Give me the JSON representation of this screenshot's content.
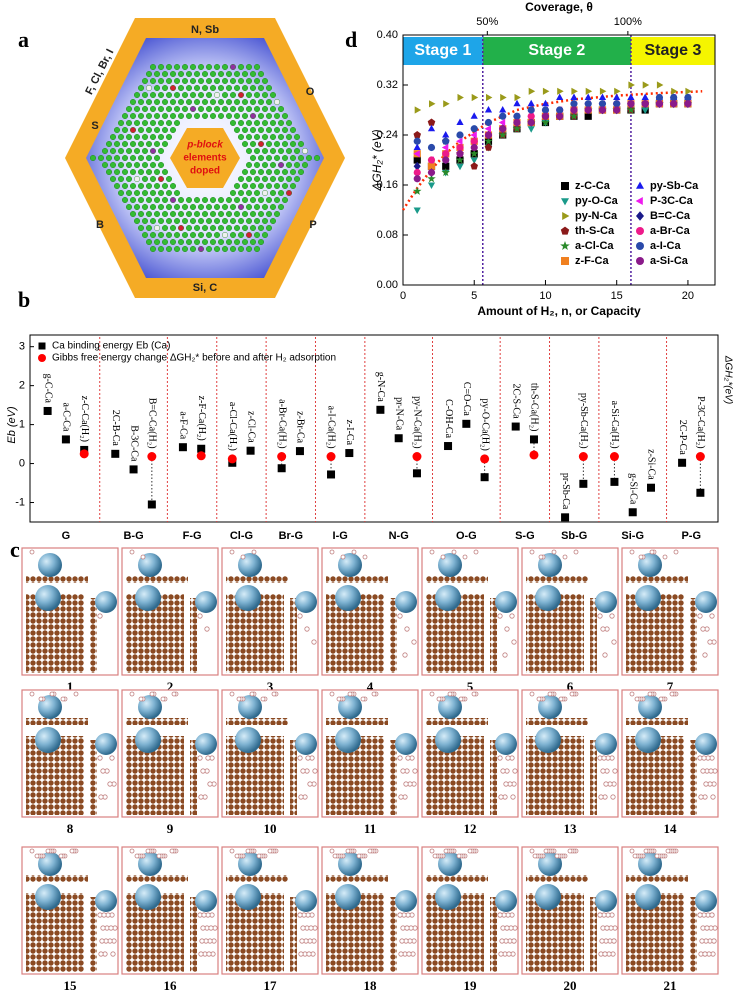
{
  "panel_labels": [
    "a",
    "b",
    "c",
    "d"
  ],
  "diagram": {
    "edge_labels": [
      "N, Sb",
      "O",
      "P",
      "Si, C",
      "B",
      "S",
      "F, Cl, Br, I"
    ],
    "center": [
      "p-block",
      "elements",
      "doped"
    ]
  },
  "snapshots": {
    "labels": [
      1,
      2,
      3,
      4,
      5,
      6,
      7,
      8,
      9,
      10,
      11,
      12,
      13,
      14,
      15,
      16,
      17,
      18,
      19,
      20,
      21
    ]
  },
  "chart_data": [
    {
      "type": "dot",
      "y_label": "Eb (eV)",
      "y2_label": "ΔGH₂*(eV)",
      "ylim": [
        -1.5,
        3.3
      ],
      "yticks": [
        -1,
        0,
        1,
        2,
        3
      ],
      "legend": "top-left",
      "groups": [
        {
          "label": "G",
          "categories": [
            "g-C-Ca",
            "a-C-Ca",
            "z-C-Ca(H₂)"
          ]
        },
        {
          "label": "B-G",
          "categories": [
            "2C-B-Ca",
            "B-3C-Ca",
            "B=C-Ca(H₂)"
          ]
        },
        {
          "label": "F-G",
          "categories": [
            "a-F-Ca",
            "z-F-Ca(H₂)"
          ]
        },
        {
          "label": "Cl-G",
          "categories": [
            "a-Cl-Ca(H₂)",
            "z-Cl-Ca"
          ]
        },
        {
          "label": "Br-G",
          "categories": [
            "a-Br-Ca(H₂)",
            "z-Br-Ca"
          ]
        },
        {
          "label": "I-G",
          "categories": [
            "a-I-Ca(H₂)",
            "z-I-Ca"
          ]
        },
        {
          "label": "N-G",
          "categories": [
            "g-N-Ca",
            "pr-N-Ca",
            "py-N-Ca(H₂)"
          ]
        },
        {
          "label": "O-G",
          "categories": [
            "C-OH-Ca",
            "C=O-Ca",
            "py-O-Ca(H₂)"
          ]
        },
        {
          "label": "S-G",
          "categories": [
            "2C-S-Ca",
            "th-S-Ca(H₂)"
          ]
        },
        {
          "label": "Sb-G",
          "categories": [
            "pr-Sb-Ca",
            "py-Sb-Ca(H₂)"
          ]
        },
        {
          "label": "Si-G",
          "categories": [
            "a-Si-Ca(H₂)",
            "g-Si-Ca",
            "z-Si-Ca"
          ]
        },
        {
          "label": "P-G",
          "categories": [
            "2C-P-Ca",
            "P-3C-Ca(H₂)"
          ]
        }
      ],
      "series": [
        {
          "name": "Ca binding energy Eb (Ca)",
          "color": "#000000",
          "marker": "square",
          "values": [
            1.35,
            0.62,
            0.35,
            0.25,
            -0.15,
            -1.05,
            0.42,
            0.38,
            0.02,
            0.33,
            -0.12,
            0.32,
            -0.28,
            0.27,
            1.38,
            0.65,
            -0.25,
            0.45,
            1.02,
            -0.35,
            0.95,
            0.62,
            -1.38,
            -0.52,
            -0.47,
            -1.25,
            -0.62,
            0.02,
            -0.75
          ]
        },
        {
          "name": "Gibbs free energy change ΔGH₂* before and after H₂ adsorption",
          "color": "#ff0000",
          "marker": "circle",
          "values": [
            null,
            null,
            0.25,
            null,
            null,
            0.18,
            null,
            0.2,
            0.12,
            null,
            0.18,
            null,
            0.18,
            null,
            null,
            null,
            0.18,
            null,
            null,
            0.12,
            null,
            0.22,
            null,
            0.18,
            0.18,
            null,
            null,
            null,
            0.18
          ]
        }
      ]
    },
    {
      "type": "scatter",
      "x_label": "Amount of H₂, n, or Capacity",
      "y_label": "ΔGH₂* (eV)",
      "x2_label": "Coverage, θ",
      "x": [
        1,
        2,
        3,
        4,
        5,
        6,
        7,
        8,
        9,
        10,
        11,
        12,
        13,
        14,
        15,
        16,
        17,
        18,
        19,
        20
      ],
      "xlim": [
        0,
        21.9
      ],
      "xticks": [
        0,
        5,
        10,
        15,
        20
      ],
      "ylim": [
        0,
        0.4
      ],
      "yticks": [
        {
          "value": 0,
          "label": "0.00"
        },
        {
          "value": 0.08,
          "label": "0.08"
        },
        {
          "value": 0.16,
          "label": "0.16"
        },
        {
          "value": 0.24,
          "label": "0.24"
        },
        {
          "value": 0.32,
          "label": "0.32"
        },
        {
          "value": 0.4,
          "label": "0.40"
        }
      ],
      "x2lim": [
        20,
        131
      ],
      "x2ticks": [
        {
          "value": 50,
          "label": "50%"
        },
        {
          "value": 100,
          "label": "100%"
        }
      ],
      "legend": "lower-right",
      "stages": [
        {
          "label": "Stage 1",
          "color": "#1ea5e8",
          "text_color": "#ffffff",
          "range": [
            0,
            5.6
          ]
        },
        {
          "label": "Stage 2",
          "color": "#22b04a",
          "text_color": "#ffffff",
          "range": [
            5.6,
            16
          ]
        },
        {
          "label": "Stage 3",
          "color": "#f5f500",
          "text_color": "#222222",
          "range": [
            16,
            21.9
          ]
        }
      ],
      "trend": {
        "color": "#ff2a00",
        "x": [
          0,
          1,
          2,
          3,
          4,
          6,
          8,
          10,
          12,
          15,
          18,
          21
        ],
        "values": [
          0.12,
          0.155,
          0.185,
          0.21,
          0.23,
          0.26,
          0.28,
          0.29,
          0.297,
          0.303,
          0.307,
          0.31
        ]
      },
      "series": [
        {
          "name": "z-C-Ca",
          "color": "#000000",
          "marker": "square",
          "values": [
            0.2,
            0.19,
            0.19,
            0.2,
            0.21,
            0.23,
            0.24,
            0.25,
            0.26,
            0.26,
            0.27,
            0.27,
            0.27,
            0.28,
            0.28,
            0.28,
            0.28,
            0.29,
            0.29,
            0.29
          ]
        },
        {
          "name": "py-O-Ca",
          "color": "#1a9a8a",
          "marker": "triangle-down",
          "values": [
            0.12,
            0.16,
            0.18,
            0.19,
            0.2,
            0.22,
            0.24,
            0.25,
            0.25,
            0.26,
            0.27,
            0.27,
            0.28,
            0.28,
            0.28,
            0.28,
            0.28,
            0.29,
            0.29,
            0.29
          ]
        },
        {
          "name": "py-N-Ca",
          "color": "#9a9a1a",
          "marker": "triangle-right",
          "values": [
            0.28,
            0.29,
            0.29,
            0.3,
            0.3,
            0.3,
            0.3,
            0.3,
            0.31,
            0.31,
            0.31,
            0.31,
            0.31,
            0.31,
            0.31,
            0.32,
            0.32,
            0.32,
            0.31,
            0.31
          ]
        },
        {
          "name": "th-S-Ca",
          "color": "#8b1a1a",
          "marker": "pentagon",
          "values": [
            0.24,
            0.26,
            0.23,
            0.21,
            0.19,
            0.22,
            0.24,
            0.25,
            0.26,
            0.27,
            0.27,
            0.27,
            0.28,
            0.28,
            0.28,
            0.28,
            0.29,
            0.29,
            0.29,
            0.29
          ]
        },
        {
          "name": "a-Cl-Ca",
          "color": "#2a8a2a",
          "marker": "star",
          "values": [
            0.15,
            0.17,
            0.18,
            0.2,
            0.21,
            0.23,
            0.24,
            0.25,
            0.26,
            0.26,
            0.27,
            0.27,
            0.28,
            0.28,
            0.28,
            0.28,
            0.29,
            0.29,
            0.29,
            0.29
          ]
        },
        {
          "name": "z-F-Ca",
          "color": "#f08020",
          "marker": "square",
          "values": [
            0.21,
            0.19,
            0.21,
            0.22,
            0.23,
            0.24,
            0.25,
            0.26,
            0.26,
            0.27,
            0.27,
            0.28,
            0.28,
            0.28,
            0.28,
            0.29,
            0.29,
            0.29,
            0.29,
            0.29
          ]
        },
        {
          "name": "py-Sb-Ca",
          "color": "#1a1aee",
          "marker": "triangle-up",
          "values": [
            0.22,
            0.25,
            0.24,
            0.26,
            0.27,
            0.28,
            0.28,
            0.29,
            0.29,
            0.29,
            0.3,
            0.3,
            0.3,
            0.3,
            0.3,
            0.3,
            0.3,
            0.3,
            0.3,
            0.3
          ]
        },
        {
          "name": "P-3C-Ca",
          "color": "#ee1aee",
          "marker": "triangle-left",
          "values": [
            0.21,
            0.2,
            0.22,
            0.23,
            0.24,
            0.25,
            0.26,
            0.27,
            0.27,
            0.28,
            0.28,
            0.28,
            0.29,
            0.29,
            0.29,
            0.29,
            0.29,
            0.29,
            0.3,
            0.3
          ]
        },
        {
          "name": "B=C-Ca",
          "color": "#1a1a8a",
          "marker": "diamond",
          "values": [
            0.19,
            0.18,
            0.2,
            0.21,
            0.23,
            0.24,
            0.25,
            0.26,
            0.26,
            0.27,
            0.27,
            0.28,
            0.28,
            0.28,
            0.28,
            0.29,
            0.29,
            0.29,
            0.29,
            0.29
          ]
        },
        {
          "name": "a-Br-Ca",
          "color": "#ee1a8a",
          "marker": "circle",
          "values": [
            0.18,
            0.2,
            0.21,
            0.22,
            0.23,
            0.24,
            0.25,
            0.26,
            0.27,
            0.27,
            0.28,
            0.28,
            0.28,
            0.28,
            0.29,
            0.29,
            0.29,
            0.29,
            0.29,
            0.29
          ]
        },
        {
          "name": "a-I-Ca",
          "color": "#2a4aaa",
          "marker": "circle",
          "values": [
            0.23,
            0.22,
            0.23,
            0.24,
            0.25,
            0.26,
            0.27,
            0.27,
            0.28,
            0.28,
            0.28,
            0.29,
            0.29,
            0.29,
            0.29,
            0.29,
            0.29,
            0.3,
            0.3,
            0.3
          ]
        },
        {
          "name": "a-Si-Ca",
          "color": "#8a1a8a",
          "marker": "circle",
          "values": [
            0.17,
            0.18,
            0.2,
            0.21,
            0.22,
            0.24,
            0.25,
            0.26,
            0.26,
            0.27,
            0.27,
            0.28,
            0.28,
            0.28,
            0.28,
            0.29,
            0.29,
            0.29,
            0.29,
            0.29
          ]
        }
      ]
    }
  ]
}
